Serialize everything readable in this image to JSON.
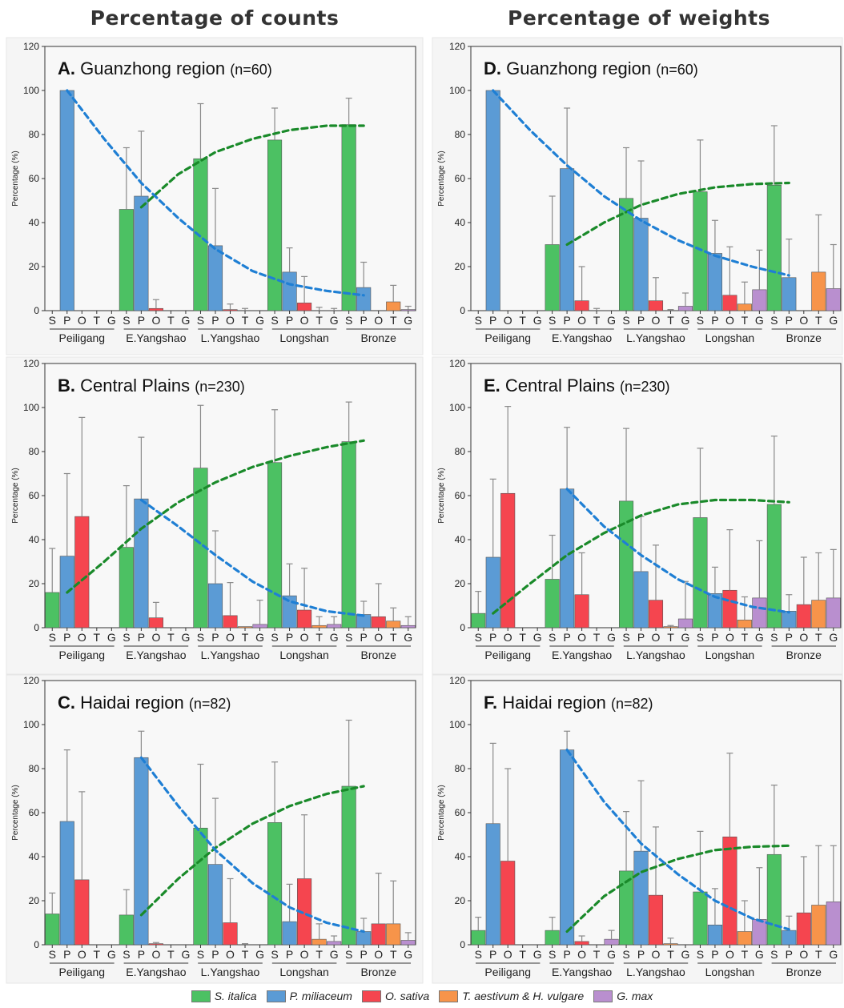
{
  "column_titles": [
    "Percentage of counts",
    "Percentage of weights"
  ],
  "legend": [
    {
      "label": "S. italica",
      "color": "#4cc163"
    },
    {
      "label": "P. miliaceum",
      "color": "#5b9bd5"
    },
    {
      "label": "O. sativa",
      "color": "#f5454f"
    },
    {
      "label": "T. aestivum & H. vulgare",
      "color": "#f7944a"
    },
    {
      "label": "G. max",
      "color": "#b98fcf"
    }
  ],
  "chart_data": [
    {
      "type": "bar",
      "letter": "A.",
      "title": "Guanzhong region",
      "n_label": "(n=60)",
      "ylabel": "Percentage (%)",
      "ylim": [
        0,
        120
      ],
      "yticks": [
        0,
        20,
        40,
        60,
        80,
        100,
        120
      ],
      "periods": [
        "Peiligang",
        "E.Yangshao",
        "L.Yangshao",
        "Longshan",
        "Bronze"
      ],
      "crop_letters": [
        "S",
        "P",
        "O",
        "T",
        "G"
      ],
      "values": [
        [
          0,
          100,
          0,
          0,
          0
        ],
        [
          46,
          52,
          1,
          0,
          0
        ],
        [
          69,
          29.5,
          0.5,
          0,
          0
        ],
        [
          77.5,
          17.5,
          3.5,
          0,
          0
        ],
        [
          84.5,
          10.5,
          0,
          4,
          0.5
        ]
      ],
      "errors": [
        [
          0,
          0,
          0,
          0,
          0
        ],
        [
          28,
          29.5,
          4,
          0,
          0
        ],
        [
          25,
          26,
          2.5,
          1,
          0
        ],
        [
          14.5,
          11,
          12,
          1.5,
          1
        ],
        [
          12,
          11.5,
          0,
          7.5,
          1.5
        ]
      ],
      "trends": [
        {
          "color": "#1a8a2a",
          "points": [
            [
              1,
              47
            ],
            [
              1.5,
              62
            ],
            [
              2,
              72
            ],
            [
              2.5,
              78
            ],
            [
              3,
              82
            ],
            [
              3.5,
              84
            ],
            [
              4,
              84
            ]
          ]
        },
        {
          "color": "#1f7fd4",
          "points": [
            [
              0,
              100
            ],
            [
              0.5,
              78
            ],
            [
              1,
              58
            ],
            [
              1.5,
              42
            ],
            [
              2,
              28
            ],
            [
              2.5,
              18
            ],
            [
              3,
              12
            ],
            [
              3.5,
              9
            ],
            [
              4,
              7
            ]
          ]
        }
      ]
    },
    {
      "type": "bar",
      "letter": "D.",
      "title": "Guanzhong region",
      "n_label": "(n=60)",
      "ylabel": "Percentage (%)",
      "ylim": [
        0,
        120
      ],
      "yticks": [
        0,
        20,
        40,
        60,
        80,
        100,
        120
      ],
      "periods": [
        "Peiligang",
        "E.Yangshao",
        "L.Yangshao",
        "Longshan",
        "Bronze"
      ],
      "crop_letters": [
        "S",
        "P",
        "O",
        "T",
        "G"
      ],
      "values": [
        [
          0,
          100,
          0,
          0,
          0
        ],
        [
          30,
          64.5,
          4.5,
          0,
          0
        ],
        [
          51,
          42,
          4.5,
          0,
          2
        ],
        [
          54,
          26,
          7,
          3,
          9.5
        ],
        [
          57,
          15,
          0,
          17.5,
          10
        ]
      ],
      "errors": [
        [
          0,
          0,
          0,
          0,
          0
        ],
        [
          22,
          27.5,
          15.5,
          1,
          0
        ],
        [
          23,
          26,
          10.5,
          0.5,
          6
        ],
        [
          23.5,
          15,
          22,
          10,
          18
        ],
        [
          27,
          17.5,
          0,
          26,
          20
        ]
      ],
      "trends": [
        {
          "color": "#1a8a2a",
          "points": [
            [
              1,
              30
            ],
            [
              1.5,
              40
            ],
            [
              2,
              48
            ],
            [
              2.5,
              53
            ],
            [
              3,
              56
            ],
            [
              3.5,
              57.5
            ],
            [
              4,
              58
            ]
          ]
        },
        {
          "color": "#1f7fd4",
          "points": [
            [
              0,
              100
            ],
            [
              0.5,
              82
            ],
            [
              1,
              66
            ],
            [
              1.5,
              52
            ],
            [
              2,
              41
            ],
            [
              2.5,
              32
            ],
            [
              3,
              25
            ],
            [
              3.5,
              20
            ],
            [
              4,
              16
            ]
          ]
        }
      ]
    },
    {
      "type": "bar",
      "letter": "B.",
      "title": "Central Plains",
      "n_label": "(n=230)",
      "ylabel": "Percentage (%)",
      "ylim": [
        0,
        120
      ],
      "yticks": [
        0,
        20,
        40,
        60,
        80,
        100,
        120
      ],
      "periods": [
        "Peiligang",
        "E.Yangshao",
        "L.Yangshao",
        "Longshan",
        "Bronze"
      ],
      "crop_letters": [
        "S",
        "P",
        "O",
        "T",
        "G"
      ],
      "values": [
        [
          16,
          32.5,
          50.5,
          0,
          0
        ],
        [
          36.5,
          58.5,
          4.5,
          0,
          0
        ],
        [
          72.5,
          20,
          5.5,
          0.5,
          1.5
        ],
        [
          75,
          14.5,
          8,
          1,
          1.5
        ],
        [
          84.5,
          6,
          5,
          3,
          1
        ]
      ],
      "errors": [
        [
          20,
          37.5,
          45,
          0,
          0
        ],
        [
          28,
          28,
          7,
          0,
          0
        ],
        [
          28.5,
          24,
          15,
          0,
          11
        ],
        [
          24,
          14.5,
          19,
          4,
          3.5
        ],
        [
          18,
          6,
          15,
          6,
          4
        ]
      ],
      "trends": [
        {
          "color": "#1a8a2a",
          "points": [
            [
              0,
              16
            ],
            [
              0.5,
              30
            ],
            [
              1,
              45
            ],
            [
              1.5,
              57
            ],
            [
              2,
              66
            ],
            [
              2.5,
              73
            ],
            [
              3,
              78
            ],
            [
              3.5,
              82
            ],
            [
              4,
              85
            ]
          ]
        },
        {
          "color": "#1f7fd4",
          "points": [
            [
              1,
              58
            ],
            [
              1.5,
              46
            ],
            [
              2,
              33
            ],
            [
              2.5,
              21
            ],
            [
              3,
              12
            ],
            [
              3.5,
              7.5
            ],
            [
              4,
              5.5
            ]
          ]
        }
      ]
    },
    {
      "type": "bar",
      "letter": "E.",
      "title": "Central Plains",
      "n_label": "(n=230)",
      "ylabel": "Percentage (%)",
      "ylim": [
        0,
        120
      ],
      "yticks": [
        0,
        20,
        40,
        60,
        80,
        100,
        120
      ],
      "periods": [
        "Peiligang",
        "E.Yangshao",
        "L.Yangshao",
        "Longshan",
        "Bronze"
      ],
      "crop_letters": [
        "S",
        "P",
        "O",
        "T",
        "G"
      ],
      "values": [
        [
          6.5,
          32,
          61,
          0,
          0
        ],
        [
          22,
          63,
          15,
          0,
          0
        ],
        [
          57.5,
          25.5,
          12.5,
          0.5,
          4
        ],
        [
          50,
          15.5,
          17,
          3.5,
          13.5
        ],
        [
          56,
          7.5,
          10.5,
          12.5,
          13.5
        ]
      ],
      "errors": [
        [
          10,
          35.5,
          39.5,
          0,
          0
        ],
        [
          20,
          28,
          19,
          0,
          0
        ],
        [
          33,
          25,
          25,
          0.5,
          17
        ],
        [
          31.5,
          12,
          27.5,
          10.5,
          26
        ],
        [
          31,
          7.5,
          21.5,
          21.5,
          22
        ]
      ],
      "trends": [
        {
          "color": "#1a8a2a",
          "points": [
            [
              0,
              6.5
            ],
            [
              0.5,
              20
            ],
            [
              1,
              33
            ],
            [
              1.5,
              43
            ],
            [
              2,
              51
            ],
            [
              2.5,
              56
            ],
            [
              3,
              58
            ],
            [
              3.5,
              58
            ],
            [
              4,
              57
            ]
          ]
        },
        {
          "color": "#1f7fd4",
          "points": [
            [
              1,
              63
            ],
            [
              1.5,
              46
            ],
            [
              2,
              33
            ],
            [
              2.5,
              22
            ],
            [
              3,
              14
            ],
            [
              3.5,
              9.5
            ],
            [
              4,
              7
            ]
          ]
        }
      ]
    },
    {
      "type": "bar",
      "letter": "C.",
      "title": "Haidai region",
      "n_label": "(n=82)",
      "ylabel": "Percentage (%)",
      "ylim": [
        0,
        120
      ],
      "yticks": [
        0,
        20,
        40,
        60,
        80,
        100,
        120
      ],
      "periods": [
        "Peiligang",
        "E.Yangshao",
        "L.Yangshao",
        "Longshan",
        "Bronze"
      ],
      "crop_letters": [
        "S",
        "P",
        "O",
        "T",
        "G"
      ],
      "values": [
        [
          14,
          56,
          29.5,
          0,
          0
        ],
        [
          13.5,
          85,
          0.5,
          0,
          0
        ],
        [
          53,
          36.5,
          10,
          0,
          0
        ],
        [
          55.5,
          10.5,
          30,
          2.5,
          1.5
        ],
        [
          72,
          6,
          9.5,
          9.5,
          2
        ]
      ],
      "errors": [
        [
          9.5,
          32.5,
          40,
          0,
          0
        ],
        [
          11.5,
          12,
          0.5,
          0,
          0
        ],
        [
          29,
          30,
          20,
          0.5,
          0
        ],
        [
          27.5,
          17,
          29,
          7,
          2.5
        ],
        [
          30,
          6,
          23,
          19.5,
          3.5
        ]
      ],
      "trends": [
        {
          "color": "#1a8a2a",
          "points": [
            [
              1,
              13.5
            ],
            [
              1.5,
              30
            ],
            [
              2,
              44
            ],
            [
              2.5,
              55
            ],
            [
              3,
              63
            ],
            [
              3.5,
              68.5
            ],
            [
              4,
              72
            ]
          ]
        },
        {
          "color": "#1f7fd4",
          "points": [
            [
              1,
              85
            ],
            [
              1.5,
              63
            ],
            [
              2,
              43
            ],
            [
              2.5,
              28
            ],
            [
              3,
              17
            ],
            [
              3.5,
              10
            ],
            [
              4,
              6
            ]
          ]
        }
      ]
    },
    {
      "type": "bar",
      "letter": "F.",
      "title": "Haidai region",
      "n_label": "(n=82)",
      "ylabel": "Percentage (%)",
      "ylim": [
        0,
        120
      ],
      "yticks": [
        0,
        20,
        40,
        60,
        80,
        100,
        120
      ],
      "periods": [
        "Peiligang",
        "E.Yangshao",
        "L.Yangshao",
        "Longshan",
        "Bronze"
      ],
      "crop_letters": [
        "S",
        "P",
        "O",
        "T",
        "G"
      ],
      "values": [
        [
          6.5,
          55,
          38,
          0,
          0
        ],
        [
          6.5,
          88.5,
          1.5,
          0,
          2.5
        ],
        [
          33.5,
          42.5,
          22.5,
          0.5,
          0
        ],
        [
          24,
          9,
          49,
          6,
          11.5
        ],
        [
          41,
          6.5,
          14.5,
          18,
          19.5
        ]
      ],
      "errors": [
        [
          6,
          36.5,
          42,
          0,
          0
        ],
        [
          6,
          8.5,
          2.5,
          0,
          4
        ],
        [
          27,
          32,
          31,
          2.5,
          0
        ],
        [
          27.5,
          16.5,
          38,
          14,
          23.5
        ],
        [
          31.5,
          6.5,
          25.5,
          27,
          25.5
        ]
      ],
      "trends": [
        {
          "color": "#1a8a2a",
          "points": [
            [
              1,
              6
            ],
            [
              1.5,
              22
            ],
            [
              2,
              33
            ],
            [
              2.5,
              39
            ],
            [
              3,
              43
            ],
            [
              3.5,
              44.5
            ],
            [
              4,
              45
            ]
          ]
        },
        {
          "color": "#1f7fd4",
          "points": [
            [
              1,
              88.5
            ],
            [
              1.5,
              65
            ],
            [
              2,
              46
            ],
            [
              2.5,
              32
            ],
            [
              3,
              20
            ],
            [
              3.5,
              12
            ],
            [
              4,
              7
            ]
          ]
        }
      ]
    }
  ]
}
